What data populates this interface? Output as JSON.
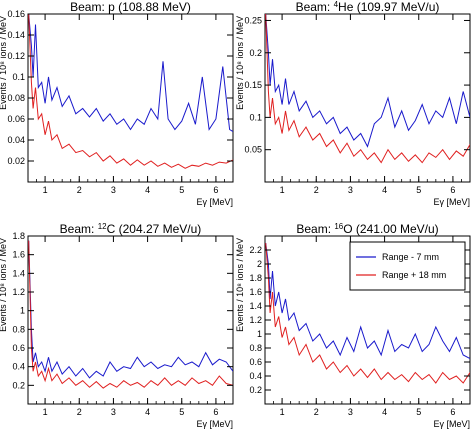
{
  "chart_data": [
    {
      "type": "line",
      "title_prefix": "Beam:",
      "title_rest": "p (108.88 MeV)",
      "xlabel": "Eγ [MeV]",
      "ylabel": "Events / 10⁸ ions / MeV",
      "xlim": [
        0.5,
        6.5
      ],
      "ylim": [
        0,
        0.16
      ],
      "xticks": [
        "1",
        "2",
        "3",
        "4",
        "5",
        "6"
      ],
      "yticks": [
        "0.02",
        "0.04",
        "0.06",
        "0.08",
        "0.1",
        "0.12",
        "0.14",
        "0.16"
      ],
      "series": [
        {
          "color": "#1a1acc",
          "x": [
            0.52,
            0.6,
            0.65,
            0.72,
            0.8,
            0.9,
            1.0,
            1.1,
            1.2,
            1.35,
            1.5,
            1.7,
            1.9,
            2.1,
            2.3,
            2.5,
            2.7,
            2.9,
            3.1,
            3.3,
            3.5,
            3.7,
            3.9,
            4.1,
            4.3,
            4.45,
            4.6,
            4.8,
            5.0,
            5.2,
            5.4,
            5.6,
            5.8,
            6.0,
            6.2,
            6.4,
            6.5
          ],
          "y": [
            0.16,
            0.13,
            0.1,
            0.15,
            0.09,
            0.095,
            0.075,
            0.1,
            0.078,
            0.09,
            0.072,
            0.082,
            0.065,
            0.07,
            0.062,
            0.07,
            0.058,
            0.065,
            0.055,
            0.06,
            0.05,
            0.06,
            0.055,
            0.07,
            0.06,
            0.115,
            0.06,
            0.05,
            0.058,
            0.075,
            0.055,
            0.1,
            0.05,
            0.06,
            0.11,
            0.05,
            0.048
          ]
        },
        {
          "color": "#e02020",
          "x": [
            0.52,
            0.6,
            0.65,
            0.72,
            0.8,
            0.9,
            1.0,
            1.1,
            1.2,
            1.35,
            1.5,
            1.7,
            1.9,
            2.1,
            2.3,
            2.5,
            2.7,
            2.9,
            3.1,
            3.3,
            3.5,
            3.7,
            3.9,
            4.1,
            4.3,
            4.5,
            4.7,
            4.9,
            5.1,
            5.3,
            5.5,
            5.7,
            5.9,
            6.1,
            6.3,
            6.5
          ],
          "y": [
            0.16,
            0.095,
            0.07,
            0.09,
            0.06,
            0.065,
            0.045,
            0.058,
            0.04,
            0.045,
            0.032,
            0.036,
            0.028,
            0.03,
            0.024,
            0.028,
            0.02,
            0.025,
            0.018,
            0.022,
            0.016,
            0.021,
            0.016,
            0.02,
            0.015,
            0.018,
            0.014,
            0.017,
            0.013,
            0.016,
            0.015,
            0.018,
            0.016,
            0.019,
            0.018,
            0.021
          ]
        }
      ]
    },
    {
      "type": "line",
      "title_prefix": "Beam:",
      "title_sup": "4",
      "title_rest": "He (109.97 MeV/u)",
      "xlabel": "Eγ [MeV]",
      "ylabel": "Events / 10⁸ ions / MeV",
      "xlim": [
        0.5,
        6.5
      ],
      "ylim": [
        0,
        0.26
      ],
      "xticks": [
        "1",
        "2",
        "3",
        "4",
        "5",
        "6"
      ],
      "yticks": [
        "0.05",
        "0.1",
        "0.15",
        "0.2",
        "0.25"
      ],
      "series": [
        {
          "color": "#1a1acc",
          "x": [
            0.52,
            0.6,
            0.65,
            0.72,
            0.8,
            0.9,
            1.0,
            1.1,
            1.2,
            1.35,
            1.5,
            1.7,
            1.9,
            2.1,
            2.3,
            2.5,
            2.7,
            2.9,
            3.1,
            3.3,
            3.5,
            3.7,
            3.9,
            4.1,
            4.3,
            4.5,
            4.7,
            4.9,
            5.1,
            5.3,
            5.5,
            5.7,
            5.9,
            6.1,
            6.3,
            6.5
          ],
          "y": [
            0.26,
            0.2,
            0.15,
            0.19,
            0.14,
            0.15,
            0.12,
            0.16,
            0.12,
            0.14,
            0.11,
            0.125,
            0.1,
            0.11,
            0.09,
            0.1,
            0.075,
            0.085,
            0.065,
            0.075,
            0.055,
            0.09,
            0.1,
            0.13,
            0.085,
            0.11,
            0.08,
            0.095,
            0.12,
            0.09,
            0.11,
            0.1,
            0.13,
            0.09,
            0.14,
            0.1
          ]
        },
        {
          "color": "#e02020",
          "x": [
            0.52,
            0.6,
            0.65,
            0.72,
            0.8,
            0.9,
            1.0,
            1.1,
            1.2,
            1.35,
            1.5,
            1.7,
            1.9,
            2.1,
            2.3,
            2.5,
            2.7,
            2.9,
            3.1,
            3.3,
            3.5,
            3.7,
            3.9,
            4.1,
            4.3,
            4.5,
            4.7,
            4.9,
            5.1,
            5.3,
            5.5,
            5.7,
            5.9,
            6.1,
            6.3,
            6.5
          ],
          "y": [
            0.26,
            0.14,
            0.1,
            0.13,
            0.09,
            0.1,
            0.075,
            0.11,
            0.08,
            0.095,
            0.07,
            0.085,
            0.065,
            0.075,
            0.055,
            0.065,
            0.045,
            0.06,
            0.04,
            0.05,
            0.035,
            0.045,
            0.03,
            0.05,
            0.035,
            0.045,
            0.032,
            0.042,
            0.03,
            0.045,
            0.038,
            0.05,
            0.035,
            0.048,
            0.04,
            0.058
          ]
        }
      ]
    },
    {
      "type": "line",
      "title_prefix": "Beam:",
      "title_sup": "12",
      "title_rest": "C (204.27 MeV/u)",
      "xlabel": "Eγ [MeV]",
      "ylabel": "Events / 10⁸ ions / MeV",
      "xlim": [
        0.5,
        6.5
      ],
      "ylim": [
        0,
        1.8
      ],
      "xticks": [
        "1",
        "2",
        "3",
        "4",
        "5",
        "6"
      ],
      "yticks": [
        "0.2",
        "0.4",
        "0.6",
        "0.8",
        "1",
        "1.2",
        "1.4",
        "1.6",
        "1.8"
      ],
      "series": [
        {
          "color": "#1a1acc",
          "x": [
            0.52,
            0.6,
            0.65,
            0.72,
            0.8,
            0.9,
            1.0,
            1.1,
            1.2,
            1.35,
            1.5,
            1.7,
            1.9,
            2.1,
            2.3,
            2.5,
            2.7,
            2.9,
            3.1,
            3.3,
            3.5,
            3.7,
            3.9,
            4.1,
            4.3,
            4.5,
            4.7,
            4.9,
            5.1,
            5.3,
            5.5,
            5.7,
            5.9,
            6.1,
            6.3,
            6.5
          ],
          "y": [
            1.75,
            0.8,
            0.45,
            0.55,
            0.4,
            0.45,
            0.35,
            0.5,
            0.35,
            0.45,
            0.32,
            0.4,
            0.3,
            0.38,
            0.28,
            0.35,
            0.3,
            0.45,
            0.35,
            0.4,
            0.38,
            0.5,
            0.4,
            0.45,
            0.38,
            0.42,
            0.4,
            0.5,
            0.42,
            0.45,
            0.4,
            0.55,
            0.42,
            0.48,
            0.45,
            0.35
          ]
        },
        {
          "color": "#e02020",
          "x": [
            0.52,
            0.6,
            0.65,
            0.72,
            0.8,
            0.9,
            1.0,
            1.1,
            1.2,
            1.35,
            1.5,
            1.7,
            1.9,
            2.1,
            2.3,
            2.5,
            2.7,
            2.9,
            3.1,
            3.3,
            3.5,
            3.7,
            3.9,
            4.1,
            4.3,
            4.5,
            4.7,
            4.9,
            5.1,
            5.3,
            5.5,
            5.7,
            5.9,
            6.1,
            6.3,
            6.5
          ],
          "y": [
            1.75,
            0.6,
            0.35,
            0.45,
            0.3,
            0.35,
            0.25,
            0.38,
            0.25,
            0.32,
            0.22,
            0.28,
            0.2,
            0.25,
            0.18,
            0.24,
            0.17,
            0.22,
            0.18,
            0.25,
            0.2,
            0.23,
            0.18,
            0.25,
            0.2,
            0.28,
            0.2,
            0.25,
            0.2,
            0.28,
            0.22,
            0.25,
            0.2,
            0.3,
            0.22,
            0.2
          ]
        }
      ]
    },
    {
      "type": "line",
      "title_prefix": "Beam:",
      "title_sup": "16",
      "title_rest": "O (241.00 MeV/u)",
      "xlabel": "Eγ [MeV]",
      "ylabel": "Events / 10⁸ ions / MeV",
      "xlim": [
        0.5,
        6.5
      ],
      "ylim": [
        0,
        2.4
      ],
      "xticks": [
        "1",
        "2",
        "3",
        "4",
        "5",
        "6"
      ],
      "yticks": [
        "0.2",
        "0.4",
        "0.6",
        "0.8",
        "1",
        "1.2",
        "1.4",
        "1.6",
        "1.8",
        "2",
        "2.2"
      ],
      "legend": {
        "placement": "top-right",
        "entries": [
          {
            "label": "Range - 7 mm",
            "color": "#1a1acc"
          },
          {
            "label": "Range + 18 mm",
            "color": "#e02020"
          }
        ]
      },
      "series": [
        {
          "color": "#1a1acc",
          "x": [
            0.52,
            0.6,
            0.65,
            0.72,
            0.8,
            0.9,
            1.0,
            1.1,
            1.2,
            1.35,
            1.5,
            1.7,
            1.9,
            2.1,
            2.3,
            2.5,
            2.7,
            2.9,
            3.1,
            3.3,
            3.5,
            3.7,
            3.9,
            4.1,
            4.3,
            4.5,
            4.7,
            4.9,
            5.1,
            5.3,
            5.5,
            5.7,
            5.9,
            6.1,
            6.3,
            6.5
          ],
          "y": [
            2.3,
            2.0,
            1.5,
            1.9,
            1.4,
            1.6,
            1.3,
            1.5,
            1.2,
            1.3,
            1.05,
            1.15,
            0.9,
            1.0,
            0.8,
            0.9,
            0.7,
            0.95,
            0.75,
            1.1,
            0.8,
            0.9,
            0.7,
            1.05,
            0.75,
            0.85,
            0.8,
            1.0,
            0.75,
            0.85,
            1.1,
            0.9,
            0.75,
            0.95,
            0.7,
            0.65
          ]
        },
        {
          "color": "#e02020",
          "x": [
            0.52,
            0.6,
            0.65,
            0.72,
            0.8,
            0.9,
            1.0,
            1.1,
            1.2,
            1.35,
            1.5,
            1.7,
            1.9,
            2.1,
            2.3,
            2.5,
            2.7,
            2.9,
            3.1,
            3.3,
            3.5,
            3.7,
            3.9,
            4.1,
            4.3,
            4.5,
            4.7,
            4.9,
            5.1,
            5.3,
            5.5,
            5.7,
            5.9,
            6.1,
            6.3,
            6.5
          ],
          "y": [
            2.3,
            1.8,
            1.3,
            1.6,
            1.1,
            1.25,
            0.95,
            1.1,
            0.85,
            0.95,
            0.7,
            0.85,
            0.6,
            0.7,
            0.5,
            0.6,
            0.45,
            0.55,
            0.4,
            0.5,
            0.38,
            0.5,
            0.35,
            0.45,
            0.35,
            0.42,
            0.32,
            0.45,
            0.35,
            0.42,
            0.3,
            0.45,
            0.35,
            0.4,
            0.3,
            0.45
          ]
        }
      ]
    }
  ]
}
